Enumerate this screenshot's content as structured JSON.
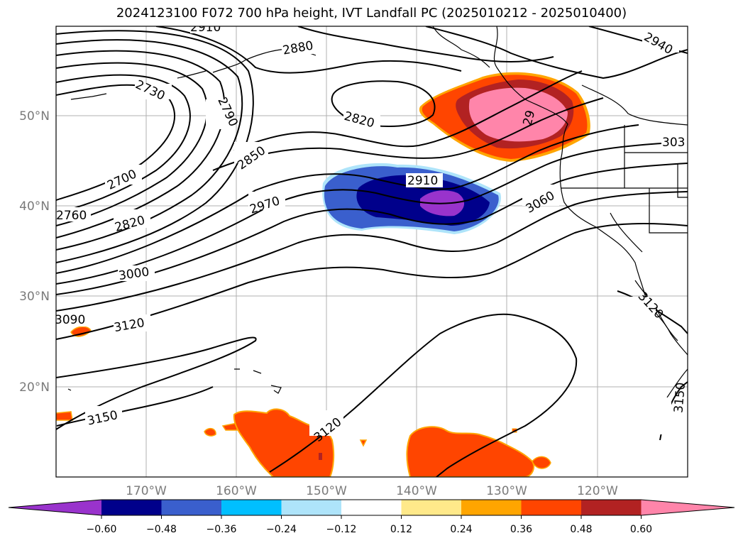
{
  "title": "2024123100 F072 700 hPa height, IVT Landfall PC (2025010212 - 2025010400)",
  "map": {
    "lat_labels": [
      "50°N",
      "40°N",
      "30°N",
      "20°N"
    ],
    "lon_labels": [
      "170°W",
      "160°W",
      "150°W",
      "140°W",
      "130°W",
      "120°W"
    ]
  },
  "contour_labels": [
    "2910",
    "2880",
    "2940",
    "2730",
    "2790",
    "2820",
    "2910",
    "303",
    "2850",
    "2700",
    "2970",
    "2760",
    "2820",
    "3060",
    "3000",
    "3090",
    "3120",
    "3120",
    "3150",
    "3120",
    "3150",
    "29"
  ],
  "colorbar": {
    "ticks": [
      "−0.60",
      "−0.48",
      "−0.36",
      "−0.24",
      "−0.12",
      "0.12",
      "0.24",
      "0.36",
      "0.48",
      "0.60"
    ],
    "colors": [
      "#9933cc",
      "#00008b",
      "#3a5fcd",
      "#00bfff",
      "#aee4fa",
      "#ffffff",
      "#ffe98a",
      "#ffa500",
      "#ff4500",
      "#b22222",
      "#ff85aa"
    ]
  }
}
